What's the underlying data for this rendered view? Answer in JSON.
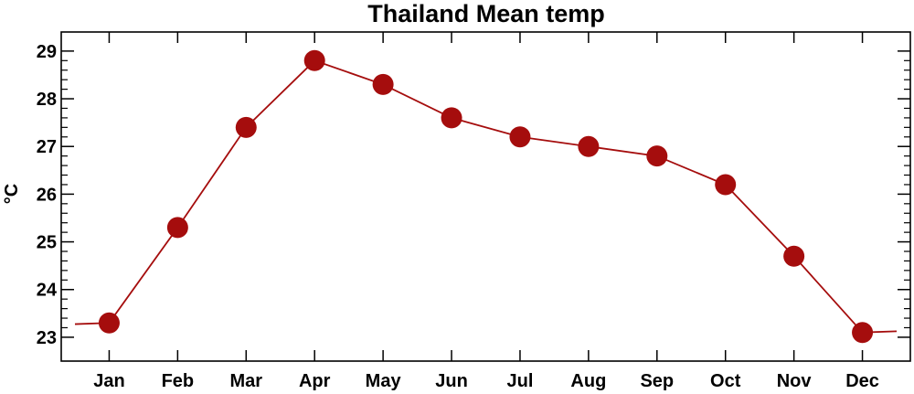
{
  "chart_data": {
    "type": "line",
    "title": "Thailand Mean temp",
    "xlabel": "",
    "ylabel": "°C",
    "categories": [
      "Jan",
      "Feb",
      "Mar",
      "Apr",
      "May",
      "Jun",
      "Jul",
      "Aug",
      "Sep",
      "Oct",
      "Nov",
      "Dec"
    ],
    "series": [
      {
        "values": [
          23.3,
          25.3,
          27.4,
          28.8,
          28.3,
          27.6,
          27.2,
          27.0,
          26.8,
          26.2,
          24.7,
          23.1
        ],
        "color": "#a50d0d",
        "marker": "filled-circle"
      }
    ],
    "ylim": [
      22.5,
      29.4
    ],
    "yticks": [
      "23",
      "24",
      "25",
      "26",
      "27",
      "28",
      "29"
    ],
    "line_extends_past_first_and_last_points": true,
    "grid": false,
    "legend": "none"
  }
}
